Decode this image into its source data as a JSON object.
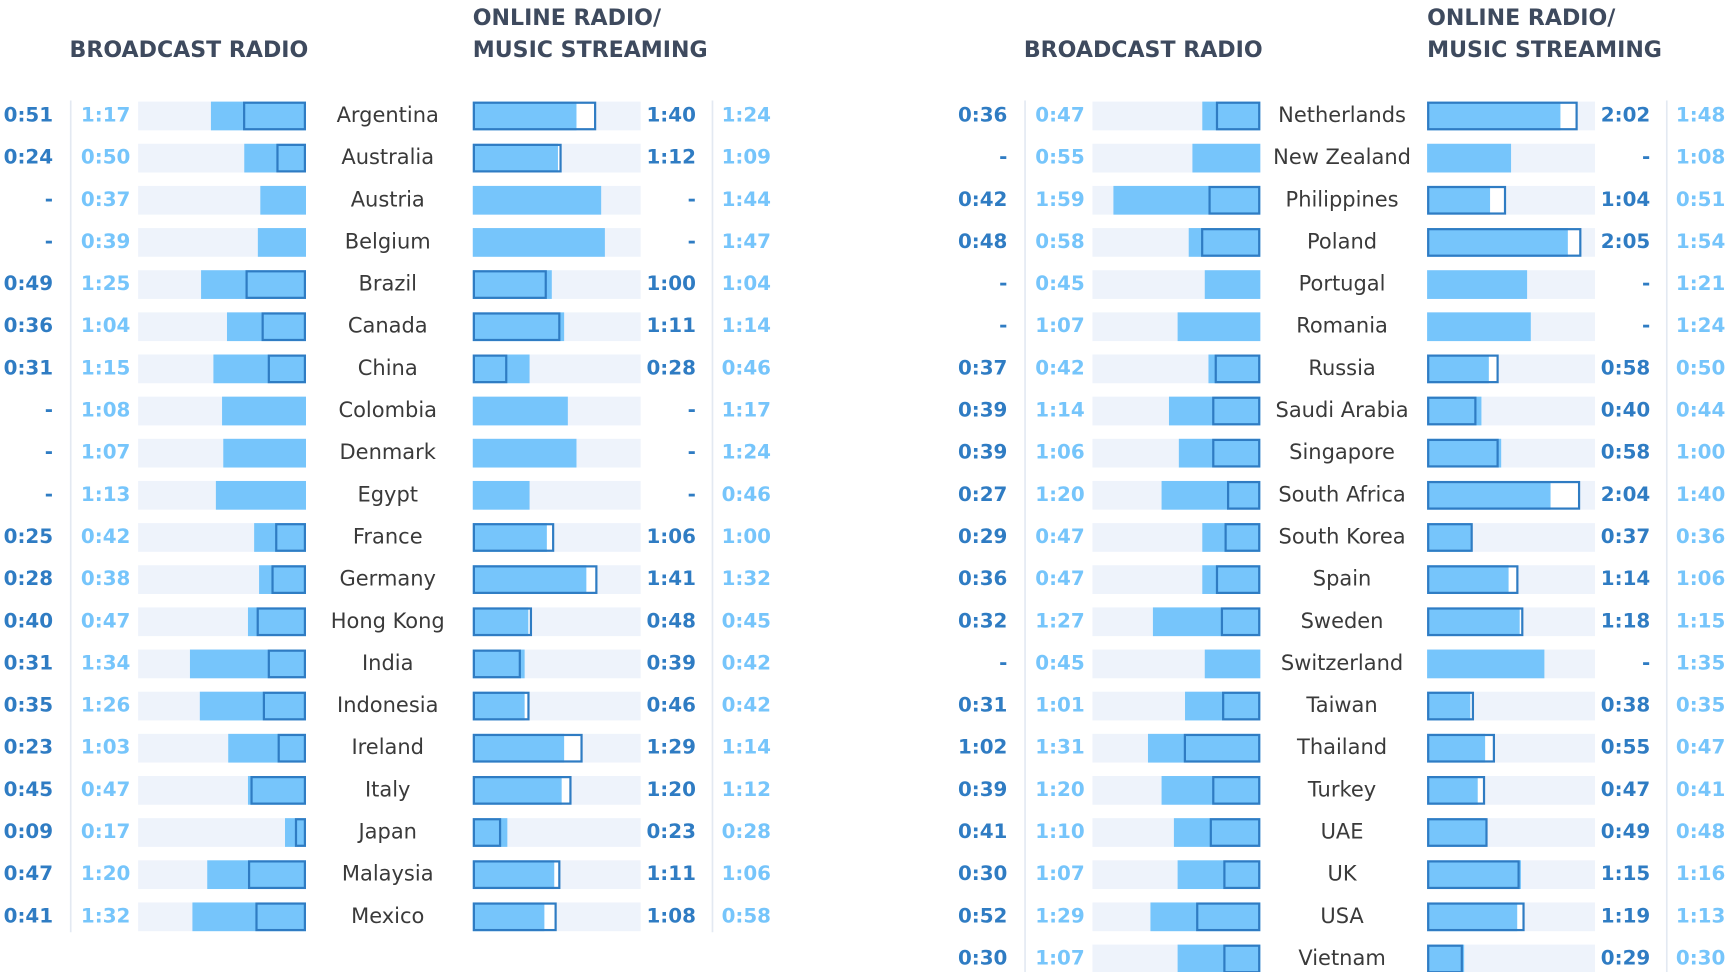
{
  "chart_data": [
    {
      "type": "bar",
      "xlim": [
        0,
        136
      ],
      "categories": [
        "Argentina",
        "Australia",
        "Austria",
        "Belgium",
        "Brazil",
        "Canada",
        "China",
        "Colombia",
        "Denmark",
        "Egypt",
        "France",
        "Germany",
        "Hong Kong",
        "India",
        "Indonesia",
        "Ireland",
        "Italy",
        "Japan",
        "Malaysia",
        "Mexico"
      ],
      "broadcast": {
        "title": [
          "BROADCAST RADIO"
        ],
        "series": [
          {
            "color": "#2f7cc3",
            "values": [
              51,
              24,
              null,
              null,
              49,
              36,
              31,
              null,
              null,
              null,
              25,
              28,
              40,
              31,
              35,
              23,
              45,
              9,
              47,
              41
            ],
            "value_labels": [
              "0:51",
              "0:24",
              "-",
              "-",
              "0:49",
              "0:36",
              "0:31",
              "-",
              "-",
              "-",
              "0:25",
              "0:28",
              "0:40",
              "0:31",
              "0:35",
              "0:23",
              "0:45",
              "0:09",
              "0:47",
              "0:41"
            ]
          },
          {
            "color": "#76c5fb",
            "values": [
              77,
              50,
              37,
              39,
              85,
              64,
              75,
              68,
              67,
              73,
              42,
              38,
              47,
              94,
              86,
              63,
              47,
              17,
              80,
              92
            ],
            "value_labels": [
              "1:17",
              "0:50",
              "0:37",
              "0:39",
              "1:25",
              "1:04",
              "1:15",
              "1:08",
              "1:07",
              "1:13",
              "0:42",
              "0:38",
              "0:47",
              "1:34",
              "1:26",
              "1:03",
              "0:47",
              "0:17",
              "1:20",
              "1:32"
            ]
          }
        ]
      },
      "online": {
        "title": [
          "ONLINE RADIO/",
          "MUSIC STREAMING"
        ],
        "series": [
          {
            "color": "#2f7cc3",
            "values": [
              100,
              72,
              null,
              null,
              60,
              71,
              28,
              null,
              null,
              null,
              66,
              101,
              48,
              39,
              46,
              89,
              80,
              23,
              71,
              68
            ],
            "value_labels": [
              "1:40",
              "1:12",
              "-",
              "-",
              "1:00",
              "1:11",
              "0:28",
              "-",
              "-",
              "-",
              "1:06",
              "1:41",
              "0:48",
              "0:39",
              "0:46",
              "1:29",
              "1:20",
              "0:23",
              "1:11",
              "1:08"
            ]
          },
          {
            "color": "#76c5fb",
            "values": [
              84,
              69,
              104,
              107,
              64,
              74,
              46,
              77,
              84,
              46,
              60,
              92,
              45,
              42,
              42,
              74,
              72,
              28,
              66,
              58
            ],
            "value_labels": [
              "1:24",
              "1:09",
              "1:44",
              "1:47",
              "1:04",
              "1:14",
              "0:46",
              "1:17",
              "1:24",
              "0:46",
              "1:00",
              "1:32",
              "0:45",
              "0:42",
              "0:42",
              "1:14",
              "1:12",
              "0:28",
              "1:06",
              "0:58"
            ]
          }
        ]
      }
    },
    {
      "type": "bar",
      "xlim": [
        0,
        136
      ],
      "categories": [
        "Netherlands",
        "New Zealand",
        "Philippines",
        "Poland",
        "Portugal",
        "Romania",
        "Russia",
        "Saudi Arabia",
        "Singapore",
        "South Africa",
        "South Korea",
        "Spain",
        "Sweden",
        "Switzerland",
        "Taiwan",
        "Thailand",
        "Turkey",
        "UAE",
        "UK",
        "USA",
        "Vietnam"
      ],
      "broadcast": {
        "title": [
          "BROADCAST RADIO"
        ],
        "series": [
          {
            "color": "#2f7cc3",
            "values": [
              36,
              null,
              42,
              48,
              null,
              null,
              37,
              39,
              39,
              27,
              29,
              36,
              32,
              null,
              31,
              62,
              39,
              41,
              30,
              52,
              30
            ],
            "value_labels": [
              "0:36",
              "-",
              "0:42",
              "0:48",
              "-",
              "-",
              "0:37",
              "0:39",
              "0:39",
              "0:27",
              "0:29",
              "0:36",
              "0:32",
              "-",
              "0:31",
              "1:02",
              "0:39",
              "0:41",
              "0:30",
              "0:52",
              "0:30"
            ]
          },
          {
            "color": "#76c5fb",
            "values": [
              47,
              55,
              119,
              58,
              45,
              67,
              42,
              74,
              66,
              80,
              47,
              47,
              87,
              45,
              61,
              91,
              80,
              70,
              67,
              89,
              67
            ],
            "value_labels": [
              "0:47",
              "0:55",
              "1:59",
              "0:58",
              "0:45",
              "1:07",
              "0:42",
              "1:14",
              "1:06",
              "1:20",
              "0:47",
              "0:47",
              "1:27",
              "0:45",
              "1:01",
              "1:31",
              "1:20",
              "1:10",
              "1:07",
              "1:29",
              "1:07"
            ]
          }
        ]
      },
      "online": {
        "title": [
          "ONLINE RADIO/",
          "MUSIC STREAMING"
        ],
        "series": [
          {
            "color": "#2f7cc3",
            "values": [
              122,
              null,
              64,
              125,
              null,
              null,
              58,
              40,
              58,
              124,
              37,
              74,
              78,
              null,
              38,
              55,
              47,
              49,
              75,
              79,
              29
            ],
            "value_labels": [
              "2:02",
              "-",
              "1:04",
              "2:05",
              "-",
              "-",
              "0:58",
              "0:40",
              "0:58",
              "2:04",
              "0:37",
              "1:14",
              "1:18",
              "-",
              "0:38",
              "0:55",
              "0:47",
              "0:49",
              "1:15",
              "1:19",
              "0:29"
            ]
          },
          {
            "color": "#76c5fb",
            "values": [
              108,
              68,
              51,
              114,
              81,
              84,
              50,
              44,
              60,
              100,
              36,
              66,
              75,
              95,
              35,
              47,
              41,
              48,
              76,
              73,
              30
            ],
            "value_labels": [
              "1:48",
              "1:08",
              "0:51",
              "1:54",
              "1:21",
              "1:24",
              "0:50",
              "0:44",
              "1:00",
              "1:40",
              "0:36",
              "1:06",
              "1:15",
              "1:35",
              "0:35",
              "0:47",
              "0:41",
              "0:48",
              "1:16",
              "1:13",
              "0:30"
            ]
          }
        ]
      }
    }
  ]
}
